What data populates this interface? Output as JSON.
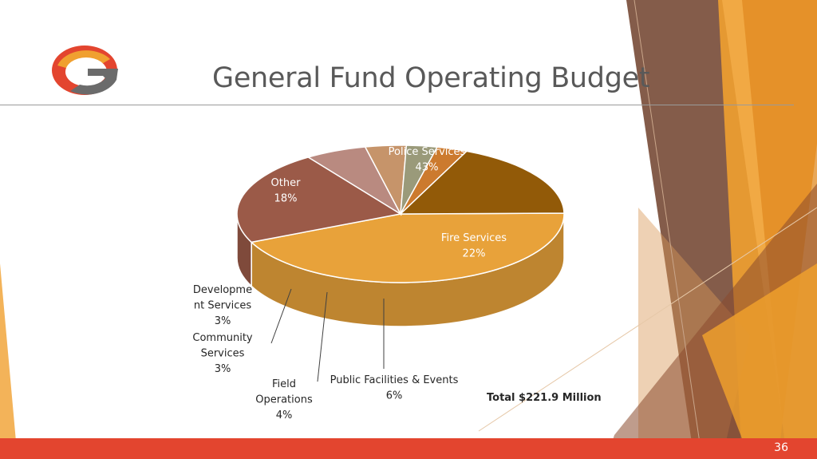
{
  "slide": {
    "title": "General Fund Operating Budget",
    "total": "Total $221.9 Million",
    "page_number": "36",
    "logo_icon": "g-logo-icon"
  },
  "colors": {
    "footer": "#e3452f",
    "accent_orange": "#f0a030",
    "accent_brown": "#7a4a2a"
  },
  "chart_data": {
    "type": "pie",
    "title": "",
    "unit": "%",
    "slices": [
      {
        "label": "Police Services",
        "value": 43,
        "value_label": "43%",
        "color": "#e8a23a",
        "label_lines": [
          "Police Services"
        ]
      },
      {
        "label": "Fire Services",
        "value": 22,
        "value_label": "22%",
        "color": "#9b5a48",
        "label_lines": [
          "Fire Services"
        ]
      },
      {
        "label": "Public Facilities & Events",
        "value": 6,
        "value_label": "6%",
        "color": "#b98a80",
        "label_lines": [
          "Public Facilities & Events"
        ]
      },
      {
        "label": "Field Operations",
        "value": 4,
        "value_label": "4%",
        "color": "#c6946a",
        "label_lines": [
          "Field",
          "Operations"
        ]
      },
      {
        "label": "Community Services",
        "value": 3,
        "value_label": "3%",
        "color": "#9a9a7a",
        "label_lines": [
          "Community",
          "Services"
        ]
      },
      {
        "label": "Development Services",
        "value": 3,
        "value_label": "3%",
        "color": "#cc7a2e",
        "label_lines": [
          "Developme",
          "nt Services"
        ]
      },
      {
        "label": "Other",
        "value": 18,
        "value_label": "18%",
        "color": "#925a08",
        "label_lines": [
          "Other"
        ]
      }
    ]
  }
}
